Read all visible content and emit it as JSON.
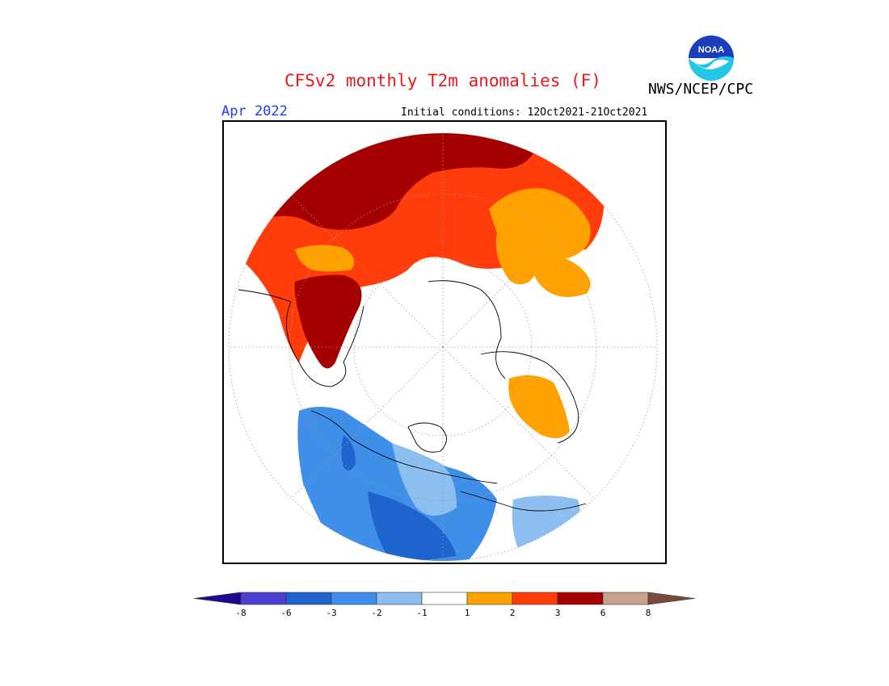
{
  "title": "CFSv2 monthly T2m anomalies (F)",
  "agency": "NWS/NCEP/CPC",
  "logo_text": "NOAA",
  "valid_month": "Apr 2022",
  "initial_conditions": "Initial conditions: 12Oct2021-21Oct2021",
  "legend": {
    "bins": [
      {
        "color": "#1f0a8c"
      },
      {
        "color": "#4b3fd0"
      },
      {
        "color": "#1e64cc"
      },
      {
        "color": "#3f8ee8"
      },
      {
        "color": "#8cbef0"
      },
      {
        "color": "#ffffff"
      },
      {
        "color": "#ffa100"
      },
      {
        "color": "#ff3c0a"
      },
      {
        "color": "#a50000"
      },
      {
        "color": "#c9a08c"
      },
      {
        "color": "#7a4a3a"
      }
    ],
    "ticks": [
      "-8",
      "-6",
      "-3",
      "-2",
      "-1",
      "1",
      "2",
      "3",
      "6",
      "8"
    ]
  },
  "map": {
    "projection": "polar-stereographic",
    "anomaly_regions": [
      {
        "name": "western-greenland-canada-warm",
        "color": "#a50000"
      },
      {
        "name": "north-america-warm",
        "color": "#ff3c0a"
      },
      {
        "name": "eastern-canada-warm",
        "color": "#ffa100"
      },
      {
        "name": "siberia-cool",
        "color": "#3f8ee8"
      },
      {
        "name": "central-asia-cool",
        "color": "#1e64cc"
      },
      {
        "name": "north-africa-warm",
        "color": "#ffa100"
      }
    ]
  }
}
